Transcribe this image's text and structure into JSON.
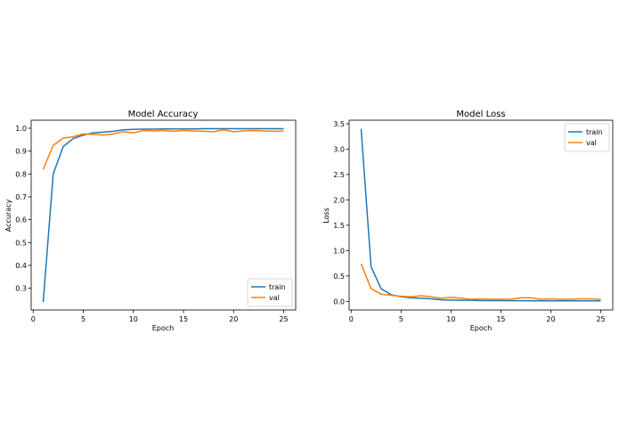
{
  "colors": {
    "train": "#1f77b4",
    "val": "#ff7f0e",
    "axes": "#000000",
    "legend_border": "#cccccc"
  },
  "chart_data": [
    {
      "type": "line",
      "title": "Model Accuracy",
      "xlabel": "Epoch",
      "ylabel": "Accuracy",
      "xlim": [
        -0.2,
        26.2
      ],
      "ylim": [
        0.205,
        1.035
      ],
      "xticks": [
        0,
        5,
        10,
        15,
        20,
        25
      ],
      "yticks": [
        0.3,
        0.4,
        0.5,
        0.6,
        0.7,
        0.8,
        0.9,
        1.0
      ],
      "ytick_labels": [
        "0.3",
        "0.4",
        "0.5",
        "0.6",
        "0.7",
        "0.8",
        "0.9",
        "1.0"
      ],
      "legend_position": "lower-right",
      "x": [
        1,
        2,
        3,
        4,
        5,
        6,
        7,
        8,
        9,
        10,
        11,
        12,
        13,
        14,
        15,
        16,
        17,
        18,
        19,
        20,
        21,
        22,
        23,
        24,
        25
      ],
      "series": [
        {
          "name": "train",
          "values": [
            0.24,
            0.8,
            0.92,
            0.955,
            0.97,
            0.98,
            0.983,
            0.987,
            0.993,
            0.995,
            0.996,
            0.996,
            0.997,
            0.997,
            0.997,
            0.997,
            0.998,
            0.998,
            0.998,
            0.998,
            0.998,
            0.998,
            0.998,
            0.998,
            0.998
          ]
        },
        {
          "name": "val",
          "values": [
            0.82,
            0.925,
            0.957,
            0.963,
            0.975,
            0.973,
            0.97,
            0.975,
            0.985,
            0.98,
            0.99,
            0.988,
            0.99,
            0.987,
            0.99,
            0.988,
            0.987,
            0.985,
            0.993,
            0.985,
            0.988,
            0.99,
            0.988,
            0.987,
            0.988
          ]
        }
      ]
    },
    {
      "type": "line",
      "title": "Model Loss",
      "xlabel": "Epoch",
      "ylabel": "Loss",
      "xlim": [
        -0.2,
        26.2
      ],
      "ylim": [
        -0.17,
        3.57
      ],
      "xticks": [
        0,
        5,
        10,
        15,
        20,
        25
      ],
      "yticks": [
        0.0,
        0.5,
        1.0,
        1.5,
        2.0,
        2.5,
        3.0,
        3.5
      ],
      "ytick_labels": [
        "0.0",
        "0.5",
        "1.0",
        "1.5",
        "2.0",
        "2.5",
        "3.0",
        "3.5"
      ],
      "legend_position": "upper-right",
      "x": [
        1,
        2,
        3,
        4,
        5,
        6,
        7,
        8,
        9,
        10,
        11,
        12,
        13,
        14,
        15,
        16,
        17,
        18,
        19,
        20,
        21,
        22,
        23,
        24,
        25
      ],
      "series": [
        {
          "name": "train",
          "values": [
            3.4,
            0.68,
            0.25,
            0.13,
            0.09,
            0.07,
            0.06,
            0.05,
            0.03,
            0.025,
            0.02,
            0.02,
            0.015,
            0.015,
            0.015,
            0.012,
            0.012,
            0.01,
            0.01,
            0.01,
            0.01,
            0.01,
            0.01,
            0.01,
            0.01
          ]
        },
        {
          "name": "val",
          "values": [
            0.74,
            0.25,
            0.14,
            0.12,
            0.1,
            0.09,
            0.11,
            0.09,
            0.06,
            0.08,
            0.06,
            0.04,
            0.05,
            0.04,
            0.04,
            0.04,
            0.07,
            0.07,
            0.04,
            0.05,
            0.04,
            0.04,
            0.05,
            0.05,
            0.04
          ]
        }
      ]
    }
  ]
}
